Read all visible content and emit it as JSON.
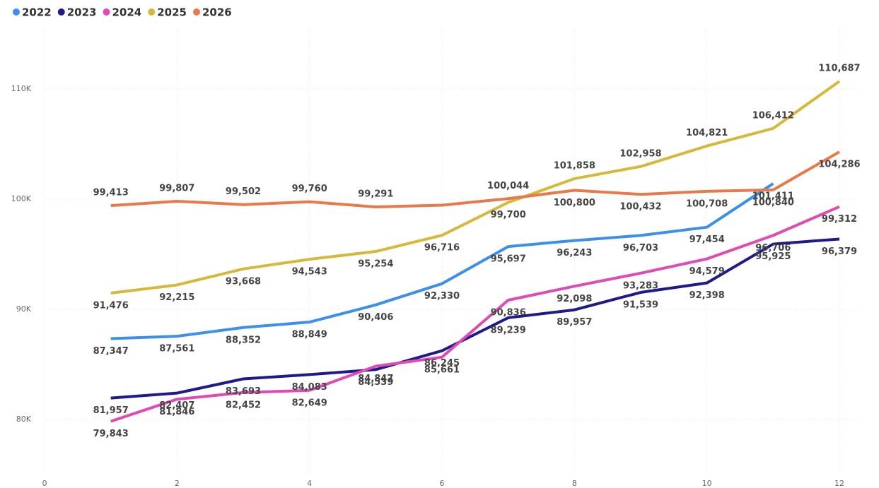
{
  "chart_data": {
    "type": "line",
    "x": [
      1,
      2,
      3,
      4,
      5,
      6,
      7,
      8,
      9,
      10,
      11,
      12
    ],
    "xlim": [
      0,
      12.3
    ],
    "xticks": [
      0,
      2,
      4,
      6,
      8,
      10,
      12
    ],
    "ylim": [
      74500,
      115500
    ],
    "yticks": [
      {
        "value": 80000,
        "label": "80K"
      },
      {
        "value": 90000,
        "label": "90K"
      },
      {
        "value": 100000,
        "label": "100K"
      },
      {
        "value": 110000,
        "label": "110K"
      }
    ],
    "grid": true,
    "legend": "top-left",
    "series": [
      {
        "name": "2022",
        "color": "#3c8fea",
        "values": [
          87347,
          87561,
          88352,
          88849,
          90406,
          92330,
          95697,
          96243,
          96703,
          97454,
          101411,
          null
        ],
        "value_labels": [
          "87,347",
          "87,561",
          "88,352",
          "88,849",
          "90,406",
          "92,330",
          "95,697",
          "96,243",
          "96,703",
          "97,454",
          "101,411",
          null
        ]
      },
      {
        "name": "2023",
        "color": "#1e1a8c",
        "values": [
          81957,
          82407,
          83693,
          84083,
          84539,
          86245,
          89239,
          89957,
          91539,
          92398,
          95925,
          96379
        ],
        "value_labels": [
          "81,957",
          "82,407",
          "83,693",
          "84,083",
          "84,539",
          "86,245",
          "89,239",
          "89,957",
          "91,539",
          "92,398",
          "95,925",
          "96,379"
        ]
      },
      {
        "name": "2024",
        "color": "#e04bb3",
        "values": [
          79843,
          81846,
          82452,
          82649,
          84847,
          85661,
          90836,
          92098,
          93283,
          94579,
          96706,
          99312
        ],
        "value_labels": [
          "79,843",
          "81,846",
          "82,452",
          "82,649",
          "84,847",
          "85,661",
          "90,836",
          "92,098",
          "93,283",
          "94,579",
          "96,706",
          "99,312"
        ]
      },
      {
        "name": "2025",
        "color": "#d6b93a",
        "values": [
          91476,
          92215,
          93668,
          94543,
          95254,
          96716,
          99700,
          101858,
          102958,
          104821,
          106412,
          110687
        ],
        "value_labels": [
          "91,476",
          "92,215",
          "93,668",
          "94,543",
          "95,254",
          "96,716",
          "99,700",
          "101,858",
          "102,958",
          "104,821",
          "106,412",
          "110,687"
        ]
      },
      {
        "name": "2026",
        "color": "#e8794a",
        "values": [
          99413,
          99807,
          99502,
          99760,
          99291,
          99450,
          100044,
          100800,
          100432,
          100708,
          100840,
          104286
        ],
        "value_labels": [
          "99,413",
          "99,807",
          "99,502",
          "99,760",
          "99,291",
          null,
          "100,044",
          "100,800",
          "100,432",
          "100,708",
          "100,840",
          "104,286"
        ]
      }
    ]
  }
}
